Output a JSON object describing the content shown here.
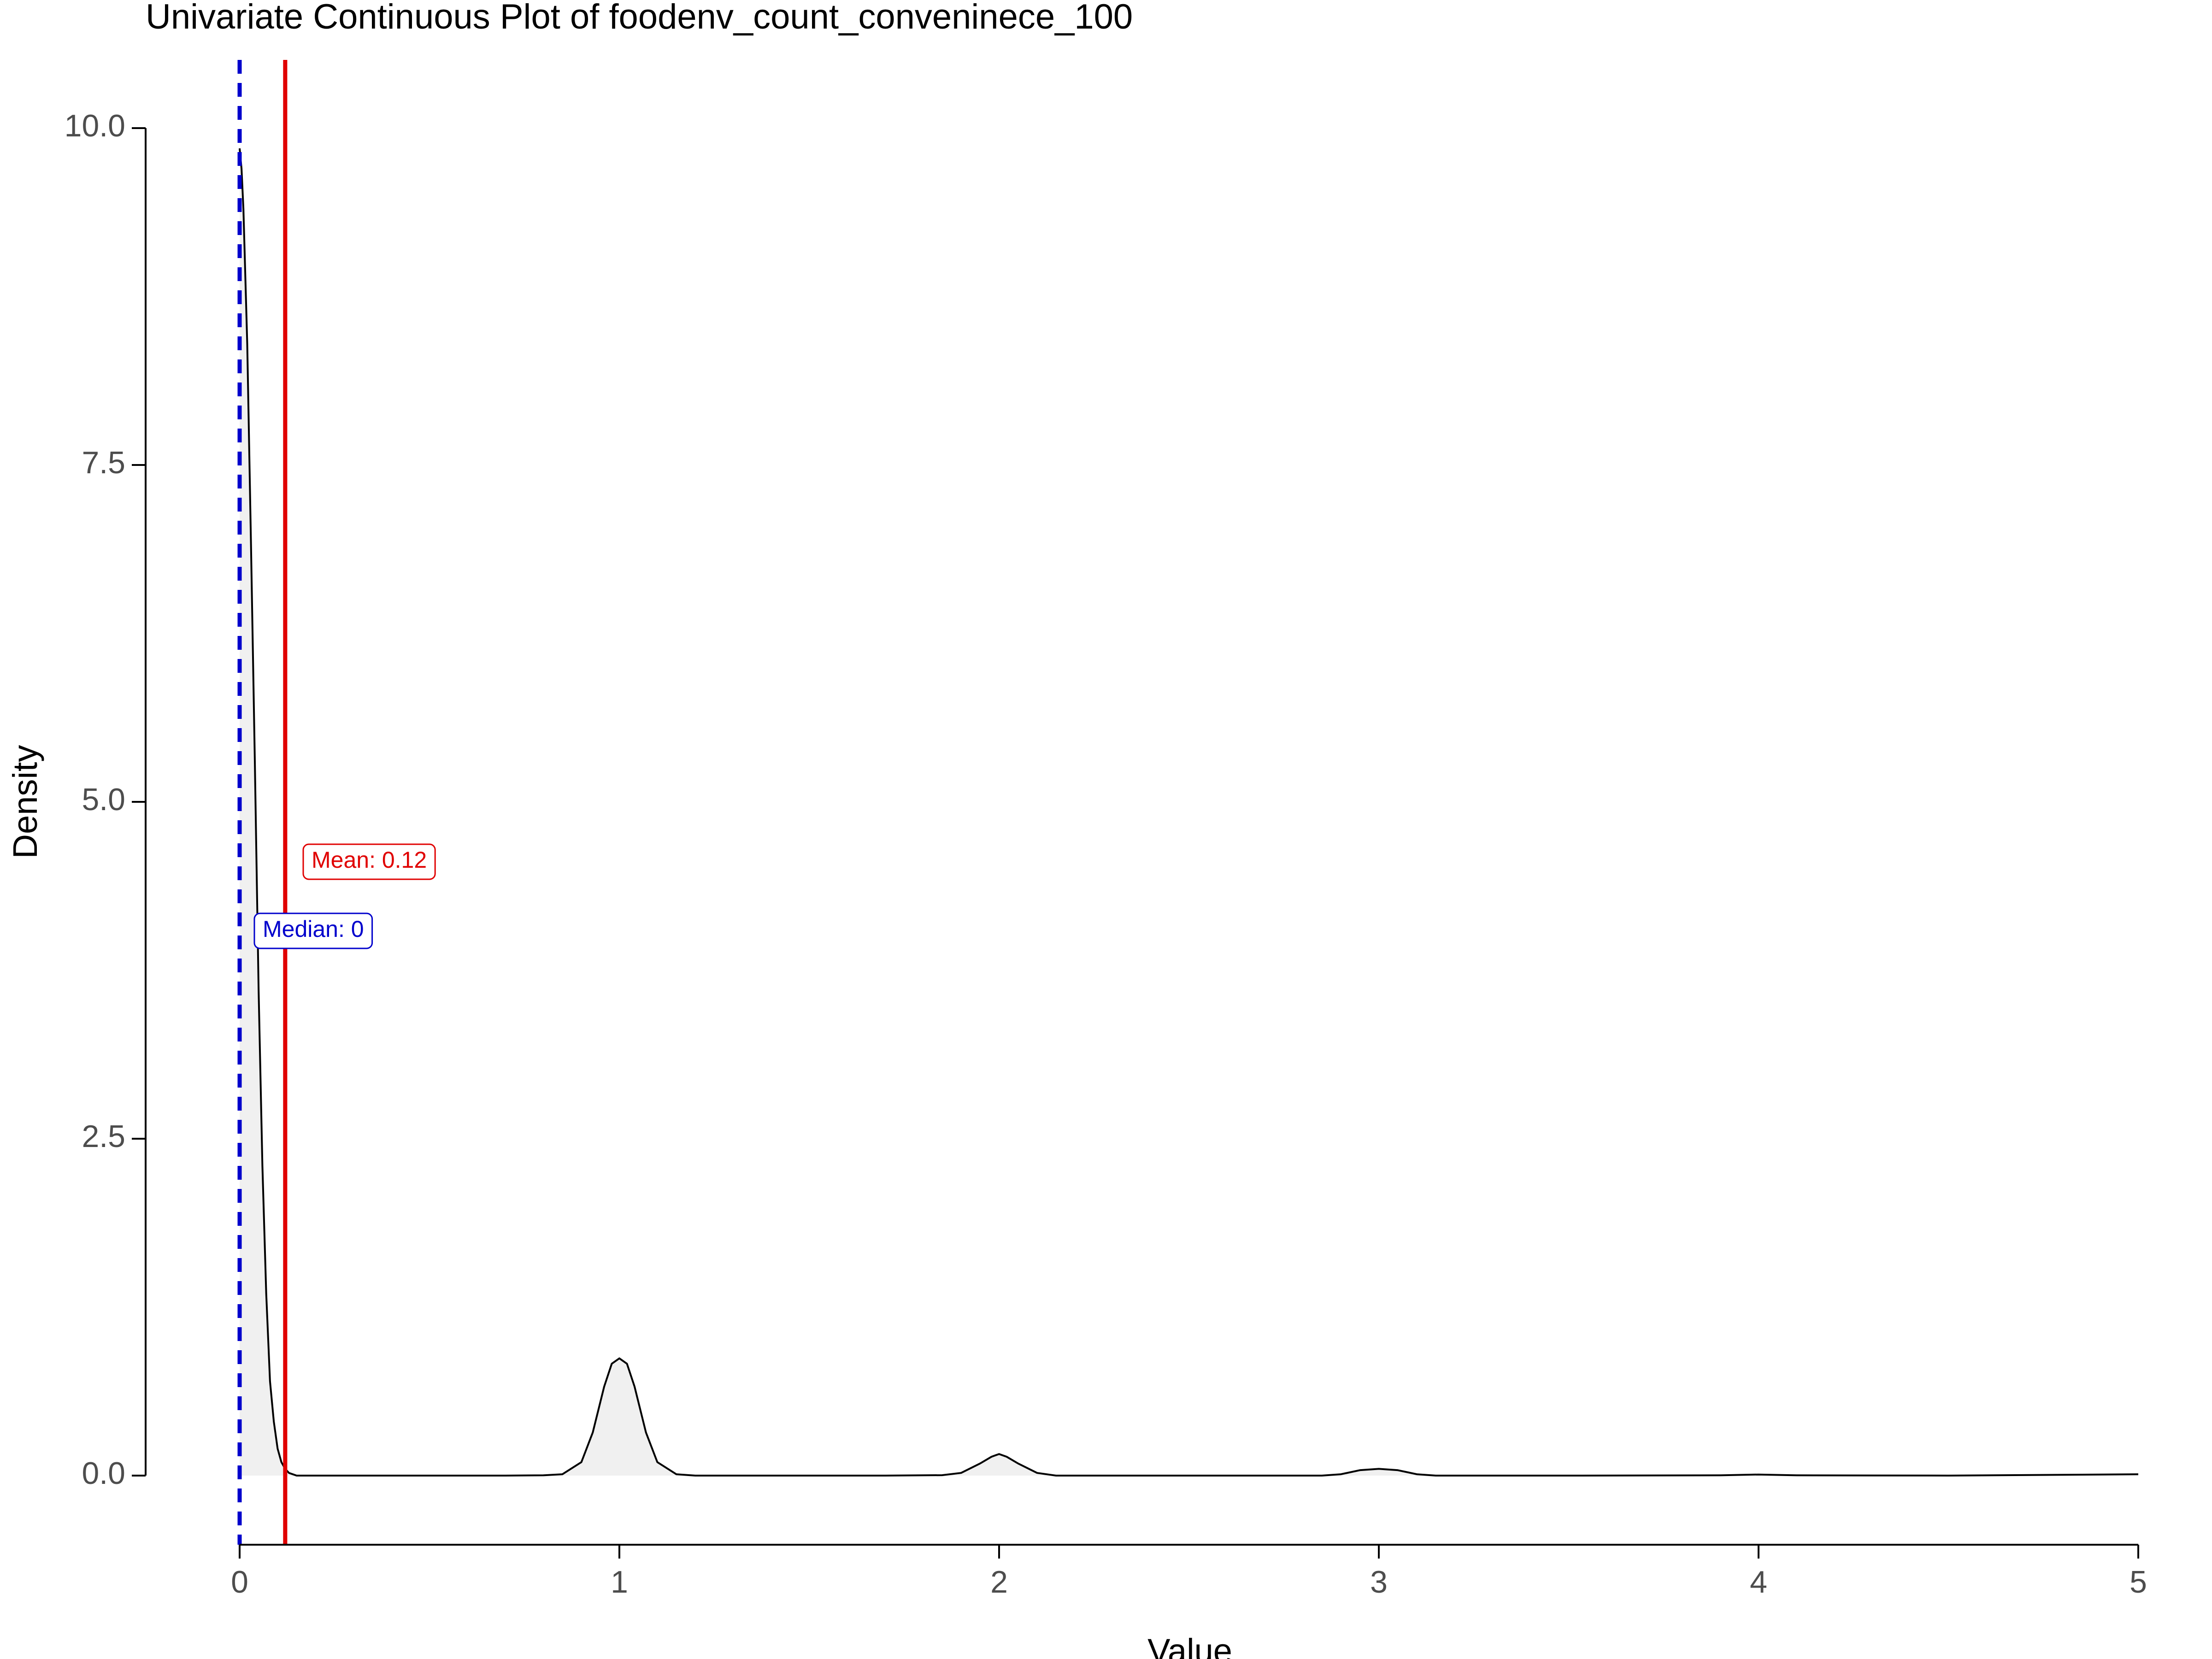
{
  "chart_data": {
    "type": "area",
    "title": "Univariate Continuous Plot of foodenv_count_conveninece_100",
    "xlabel": "Value",
    "ylabel": "Density",
    "xlim": [
      0,
      5
    ],
    "ylim": [
      -0.5,
      10.5
    ],
    "x_ticks": [
      0,
      1,
      2,
      3,
      4,
      5
    ],
    "x_tick_labels": [
      "0",
      "1",
      "2",
      "3",
      "4",
      "5"
    ],
    "y_ticks": [
      0,
      2.5,
      5,
      7.5,
      10
    ],
    "y_tick_labels": [
      "0.0",
      "2.5",
      "5.0",
      "7.5",
      "10.0"
    ],
    "grid": false,
    "series": [
      {
        "x": [
          0,
          0.005,
          0.01,
          0.02,
          0.03,
          0.04,
          0.05,
          0.06,
          0.07,
          0.08,
          0.09,
          0.1,
          0.11,
          0.12,
          0.13,
          0.15,
          0.2,
          0.3,
          0.5,
          0.7,
          0.8,
          0.85,
          0.9,
          0.93,
          0.96,
          0.98,
          1.0,
          1.02,
          1.04,
          1.07,
          1.1,
          1.15,
          1.2,
          1.4,
          1.7,
          1.85,
          1.9,
          1.95,
          1.98,
          2.0,
          2.02,
          2.05,
          2.1,
          2.15,
          2.3,
          2.6,
          2.85,
          2.9,
          2.95,
          3.0,
          3.05,
          3.1,
          3.15,
          3.5,
          3.9,
          4.0,
          4.1,
          4.5,
          5.0
        ],
        "y": [
          9.85,
          9.7,
          9.4,
          8.4,
          6.9,
          5.3,
          3.6,
          2.3,
          1.35,
          0.7,
          0.4,
          0.2,
          0.1,
          0.05,
          0.02,
          0.0,
          0.0,
          0.0,
          0.0,
          0.0,
          0.002,
          0.01,
          0.1,
          0.32,
          0.66,
          0.83,
          0.87,
          0.83,
          0.66,
          0.32,
          0.1,
          0.01,
          0.0,
          0.0,
          0.0,
          0.003,
          0.02,
          0.09,
          0.14,
          0.16,
          0.14,
          0.09,
          0.02,
          0.0,
          0.0,
          0.0,
          0.0,
          0.01,
          0.04,
          0.05,
          0.04,
          0.01,
          0.0,
          0.0,
          0.002,
          0.008,
          0.002,
          0.0,
          0.01
        ]
      }
    ],
    "median": {
      "value": 0,
      "label": "Median: 0",
      "color": "#0000cc"
    },
    "mean": {
      "value": 0.12,
      "label": "Mean: 0.12",
      "color": "#e00000"
    },
    "fill_color": "#f0f0f0",
    "line_color": "#000000"
  }
}
